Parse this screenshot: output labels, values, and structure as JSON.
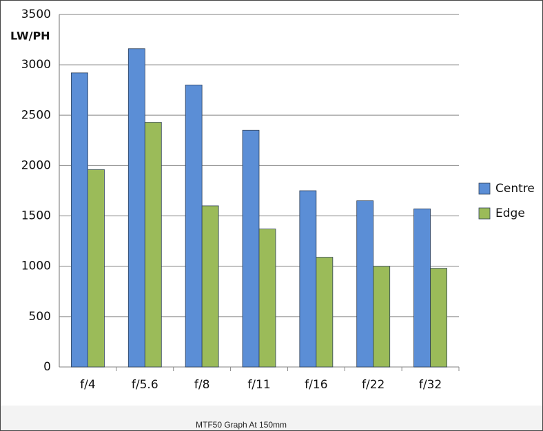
{
  "chart_data": {
    "type": "bar",
    "y_label": "LW/PH",
    "categories": [
      "f/4",
      "f/5.6",
      "f/8",
      "f/11",
      "f/16",
      "f/22",
      "f/32"
    ],
    "series": [
      {
        "name": "Centre",
        "color": "#5b8ed6",
        "values": [
          2920,
          3160,
          2800,
          2350,
          1750,
          1650,
          1570
        ]
      },
      {
        "name": "Edge",
        "color": "#9bbb59",
        "values": [
          1960,
          2430,
          1600,
          1370,
          1090,
          1000,
          980
        ]
      }
    ],
    "ylim": [
      0,
      3500
    ],
    "yticks": [
      0,
      500,
      1000,
      1500,
      2000,
      2500,
      3000,
      3500
    ],
    "grid": true,
    "legend": "right"
  },
  "caption": "MTF50 Graph At 150mm"
}
